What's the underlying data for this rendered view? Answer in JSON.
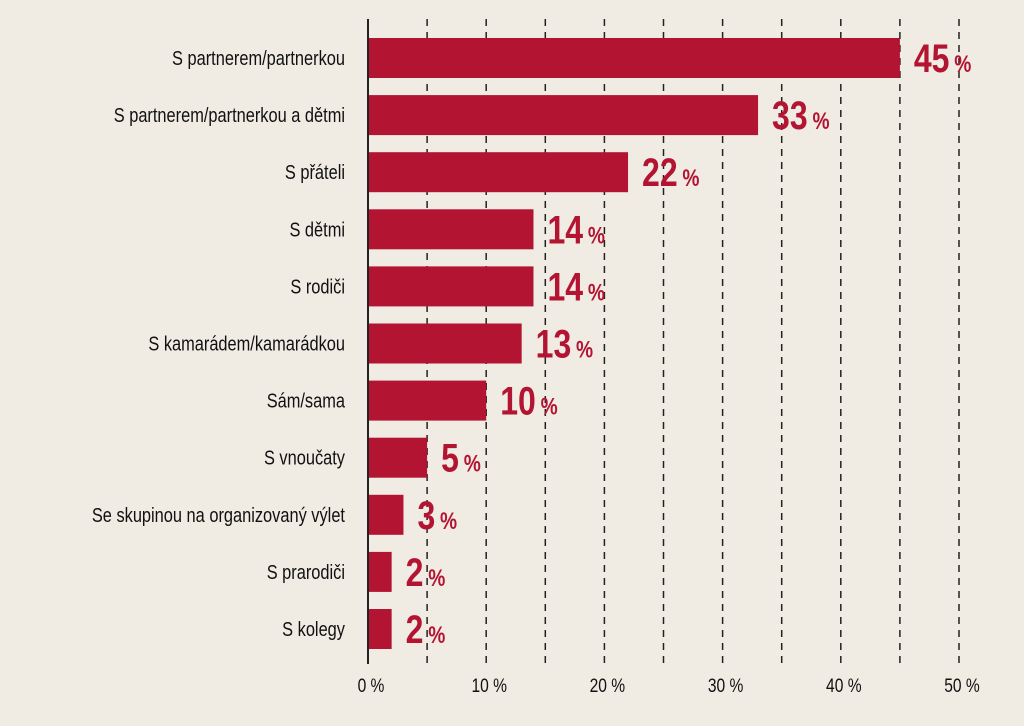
{
  "chart_data": {
    "type": "bar",
    "orientation": "horizontal",
    "title": "",
    "xlabel": "",
    "ylabel": "",
    "categories": [
      "S partnerem/partnerkou",
      "S partnerem/partnerkou a dětmi",
      "S přáteli",
      "S dětmi",
      "S rodiči",
      "S kamarádem/kamarádkou",
      "Sám/sama",
      "S vnoučaty",
      "Se skupinou na organizovaný výlet",
      "S prarodiči",
      "S kolegy"
    ],
    "values": [
      45,
      33,
      22,
      14,
      14,
      13,
      10,
      5,
      3,
      2,
      2
    ],
    "value_suffix": "%",
    "xlim": [
      0,
      50
    ],
    "xticks": [
      0,
      10,
      20,
      30,
      40,
      50
    ],
    "xtick_labels": [
      "0 %",
      "10 %",
      "20 %",
      "30 %",
      "40 %",
      "50 %"
    ],
    "grid": "vertical dashed every 5",
    "colors": {
      "bar": "#b31432",
      "background": "#f0ebe3",
      "text": "#111111"
    }
  }
}
